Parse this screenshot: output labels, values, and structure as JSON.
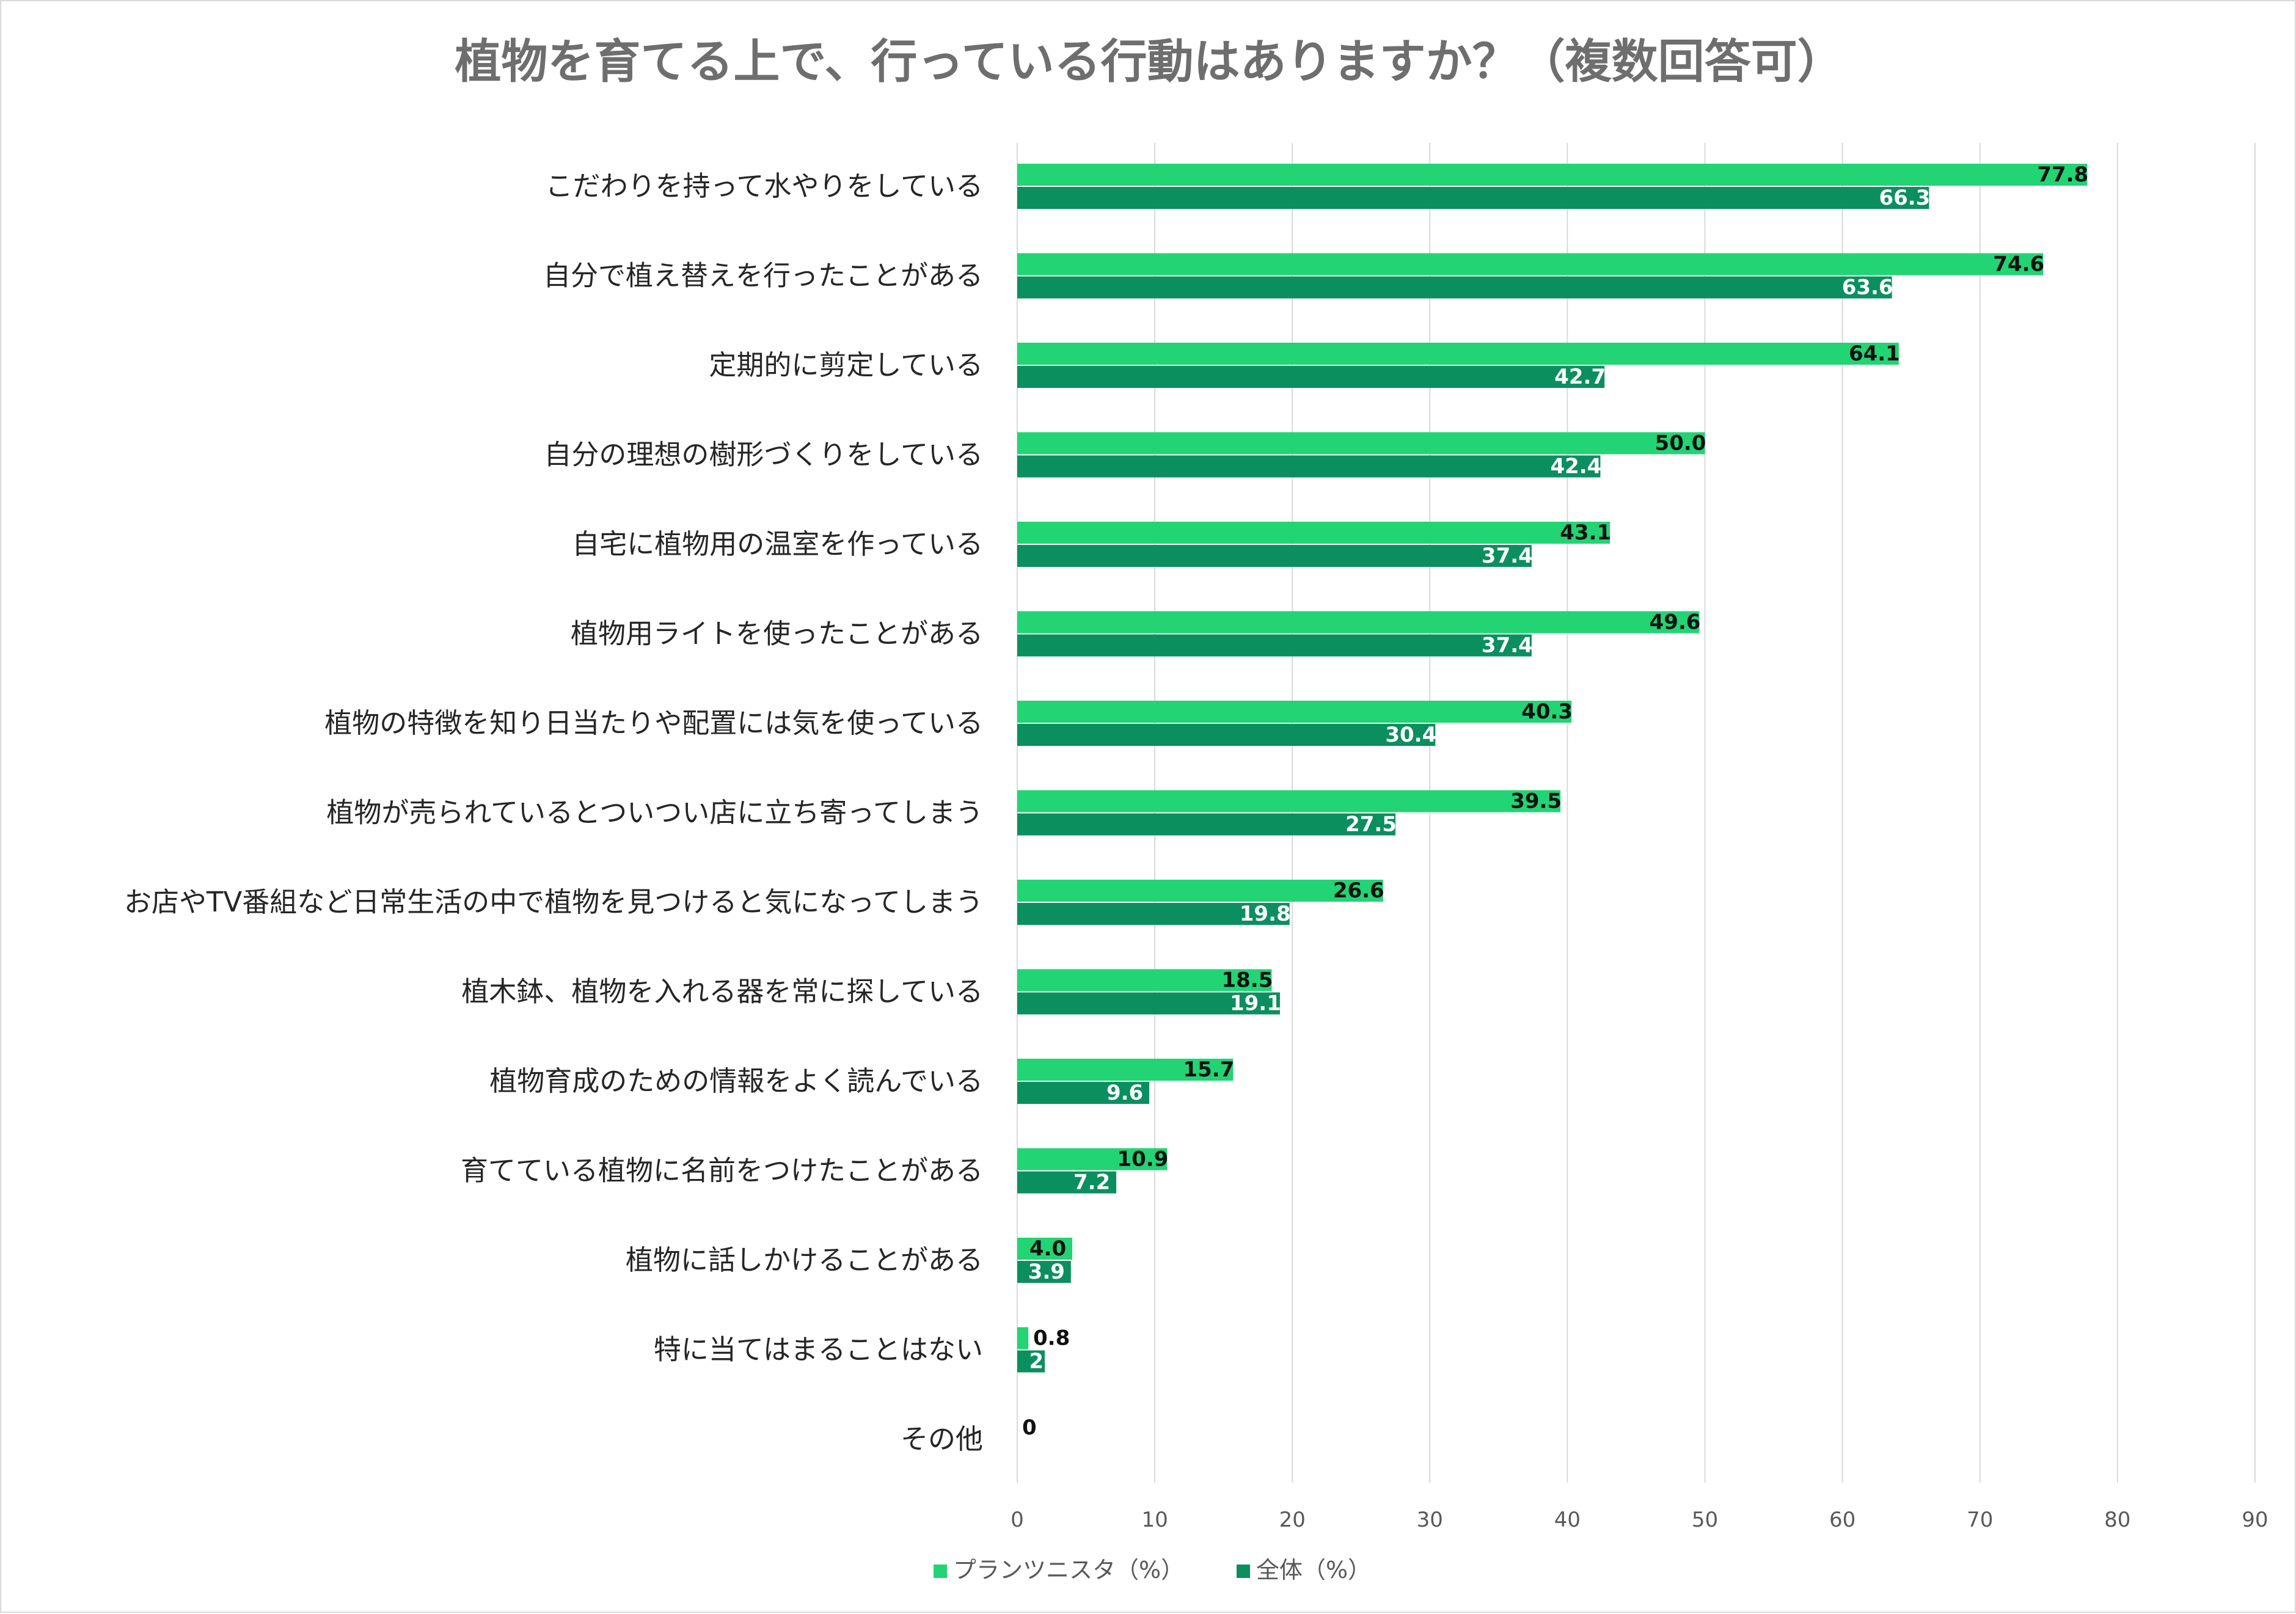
{
  "chart_data": {
    "type": "bar",
    "orientation": "horizontal",
    "title": "植物を育てる上で、行っている行動はありますか？（複数回答可）",
    "categories": [
      "こだわりを持って水やりをしている",
      "自分で植え替えを行ったことがある",
      "定期的に剪定している",
      "自分の理想の樹形づくりをしている",
      "自宅に植物用の温室を作っている",
      "植物用ライトを使ったことがある",
      "植物の特徴を知り日当たりや配置には気を使っている",
      "植物が売られているとついつい店に立ち寄ってしまう",
      "お店やTV番組など日常生活の中で植物を見つけると気になってしまう",
      "植木鉢、植物を入れる器を常に探している",
      "植物育成のための情報をよく読んでいる",
      "育てている植物に名前をつけたことがある",
      "植物に話しかけることがある",
      "特に当てはまることはない",
      "その他"
    ],
    "series": [
      {
        "name": "プランツニスタ（%）",
        "color": "#22d474",
        "values": [
          77.8,
          74.6,
          64.1,
          50.0,
          43.1,
          49.6,
          40.3,
          39.5,
          26.6,
          18.5,
          15.7,
          10.9,
          4.0,
          0.8,
          0
        ],
        "labels": [
          "77.8",
          "74.6",
          "64.1",
          "50.0",
          "43.1",
          "49.6",
          "40.3",
          "39.5",
          "26.6",
          "18.5",
          "15.7",
          "10.9",
          "4.0",
          "0.8",
          "0"
        ]
      },
      {
        "name": "全体（%）",
        "color": "#0b8f5e",
        "values": [
          66.3,
          63.6,
          42.7,
          42.4,
          37.4,
          37.4,
          30.4,
          27.5,
          19.8,
          19.1,
          9.6,
          7.2,
          3.9,
          2,
          null
        ],
        "labels": [
          "66.3",
          "63.6",
          "42.7",
          "42.4",
          "37.4",
          "37.4",
          "30.4",
          "27.5",
          "19.8",
          "19.1",
          "9.6",
          "7.2",
          "3.9",
          "2",
          ""
        ]
      }
    ],
    "xlim": [
      0,
      90
    ],
    "xticks": [
      0,
      10,
      20,
      30,
      40,
      50,
      60,
      70,
      80,
      90
    ],
    "xlabel": "",
    "ylabel": "",
    "grid": true,
    "legend_position": "bottom"
  }
}
